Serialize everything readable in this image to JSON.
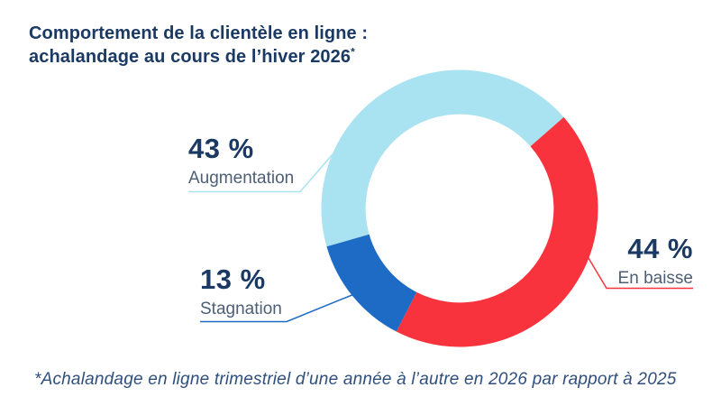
{
  "page": {
    "background": "#FFFFFF"
  },
  "title": {
    "line1": "Comportement de la clientèle en ligne :",
    "line2": "achalandage au cours de l’hiver 2026",
    "superscript": "*"
  },
  "footnote": "*Achalandage en ligne trimestriel d’une année à l’autre en 2026 par rapport à 2025",
  "colors": {
    "title_navy": "#1A3A63",
    "category_slate": "#4C5F75",
    "footnote_blue": "#2F4F7D",
    "background": "#FFFFFF"
  },
  "chart_data": {
    "type": "pie",
    "variant": "donut",
    "title": "Comportement de la clientèle en ligne : achalandage au cours de l’hiver 2026*",
    "unit": "%",
    "slices": [
      {
        "label": "Augmentation",
        "value": 43,
        "display": "43 %",
        "color": "#A9E2F1"
      },
      {
        "label": "En baisse",
        "value": 44,
        "display": "44 %",
        "color": "#F8333E"
      },
      {
        "label": "Stagnation",
        "value": 13,
        "display": "13 %",
        "color": "#1D6BC4"
      }
    ],
    "start_angle_clockwise_from_top_deg": 254,
    "inner_radius_ratio": 0.68,
    "legend": "callout-labels-with-leader-lines"
  }
}
